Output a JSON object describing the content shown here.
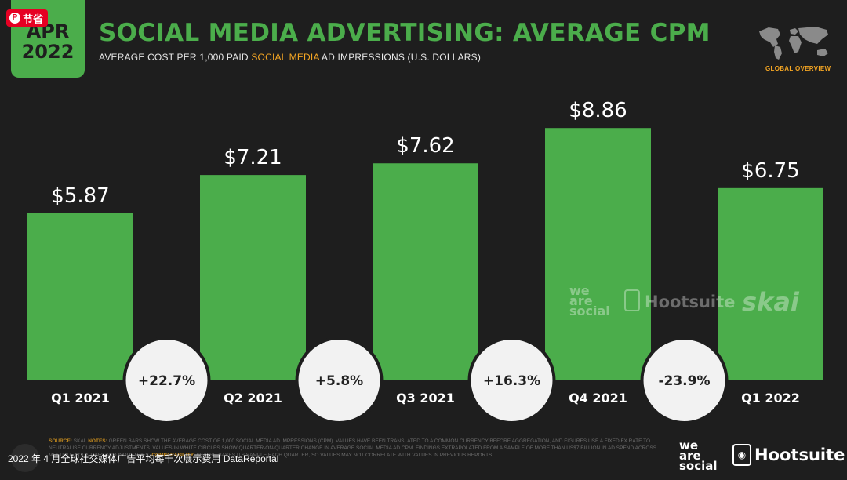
{
  "header": {
    "month": "APR",
    "year": "2022",
    "title": "SOCIAL MEDIA ADVERTISING: AVERAGE CPM",
    "subtitle_pre": "AVERAGE COST PER 1,000 PAID ",
    "subtitle_highlight": "SOCIAL MEDIA",
    "subtitle_post": " AD IMPRESSIONS (U.S. DOLLARS)",
    "global_overview": "GLOBAL OVERVIEW"
  },
  "pin_badge": {
    "icon": "P",
    "label": "节省"
  },
  "colors": {
    "bar": "#4bad4b",
    "background": "#1e1e1e",
    "highlight": "#f5a623",
    "circle": "#f2f2f2"
  },
  "chart_data": {
    "type": "bar",
    "title": "SOCIAL MEDIA ADVERTISING: AVERAGE CPM",
    "subtitle": "AVERAGE COST PER 1,000 PAID SOCIAL MEDIA AD IMPRESSIONS (U.S. DOLLARS)",
    "categories": [
      "Q1 2021",
      "Q2 2021",
      "Q3 2021",
      "Q4 2021",
      "Q1 2022"
    ],
    "values": [
      5.87,
      7.21,
      7.62,
      8.86,
      6.75
    ],
    "value_labels": [
      "$5.87",
      "$7.21",
      "$7.62",
      "$8.86",
      "$6.75"
    ],
    "changes": [
      "+22.7%",
      "+5.8%",
      "+16.3%",
      "-23.9%"
    ],
    "unit": "U.S. dollars",
    "xlabel": "",
    "ylabel": "",
    "ylim": [
      0,
      10.6
    ],
    "grid": false,
    "legend": "none"
  },
  "watermarks": {
    "we": "we",
    "are": "are",
    "social": "social",
    "hootsuite": "Hootsuite",
    "skai": "skai"
  },
  "footer": {
    "source_label": "SOURCE:",
    "source": "SKAI.",
    "notes_label": "NOTES:",
    "notes": "GREEN BARS SHOW THE AVERAGE COST OF 1,000 SOCIAL MEDIA AD IMPRESSIONS (CPM). VALUES HAVE BEEN TRANSLATED TO A COMMON CURRENCY BEFORE AGGREGATION, AND FIGURES USE A FIXED FX RATE TO NEUTRALISE CURRENCY ADJUSTMENTS. VALUES IN WHITE CIRCLES SHOW QUARTER-ON-QUARTER CHANGE IN AVERAGE SOCIAL MEDIA AD CPM. FINDINGS EXTRAPOLATED FROM A SAMPLE OF MORE THAN US$7 BILLION IN AD SPEND ACROSS MULTIPLE COUNTRIES AND INDUSTRIES.",
    "comparability_label": "COMPARABILITY:",
    "comparability": "SKAI RE-BASES ITS SAMPLE EACH QUARTER, SO VALUES MAY NOT CORRELATE WITH VALUES IN PREVIOUS REPORTS.",
    "caption": "2022 年 4 月全球社交媒体广告平均每千次展示费用 DataReportal",
    "hootsuite": "Hootsuite",
    "we": "we",
    "are": "are",
    "social": "social"
  }
}
